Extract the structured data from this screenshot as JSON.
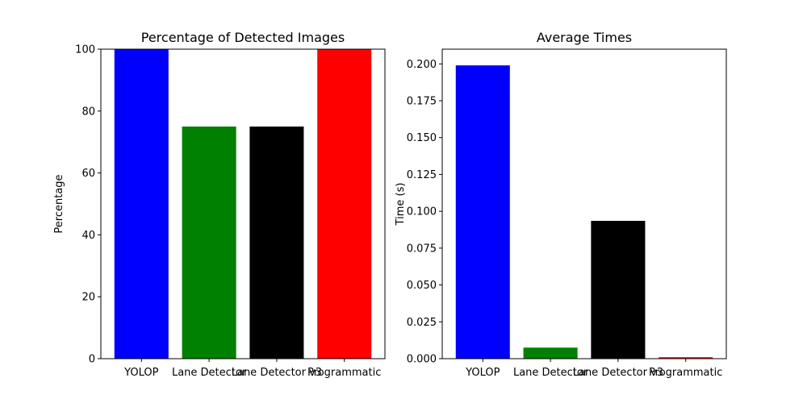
{
  "chart_data": [
    {
      "type": "bar",
      "title": "Percentage of Detected Images",
      "xlabel": "",
      "ylabel": "Percentage",
      "categories": [
        "YOLOP",
        "Lane Detector",
        "Lane Detector v3",
        "Programmatic"
      ],
      "values": [
        100,
        75,
        75,
        100
      ],
      "colors": [
        "#0000ff",
        "#008000",
        "#000000",
        "#ff0000"
      ],
      "ylim": [
        0,
        100
      ],
      "yticks": [
        "0",
        "20",
        "40",
        "60",
        "80",
        "100"
      ],
      "grid": false
    },
    {
      "type": "bar",
      "title": "Average Times",
      "xlabel": "",
      "ylabel": "Time (s)",
      "categories": [
        "YOLOP",
        "Lane Detector",
        "Lane Detector v3",
        "Programmatic"
      ],
      "values": [
        0.199,
        0.0075,
        0.0935,
        0.001
      ],
      "colors": [
        "#0000ff",
        "#008000",
        "#000000",
        "#ff0000"
      ],
      "ylim": [
        0,
        0.21
      ],
      "yticks": [
        "0.000",
        "0.025",
        "0.050",
        "0.075",
        "0.100",
        "0.125",
        "0.150",
        "0.175",
        "0.200"
      ],
      "grid": false
    }
  ]
}
